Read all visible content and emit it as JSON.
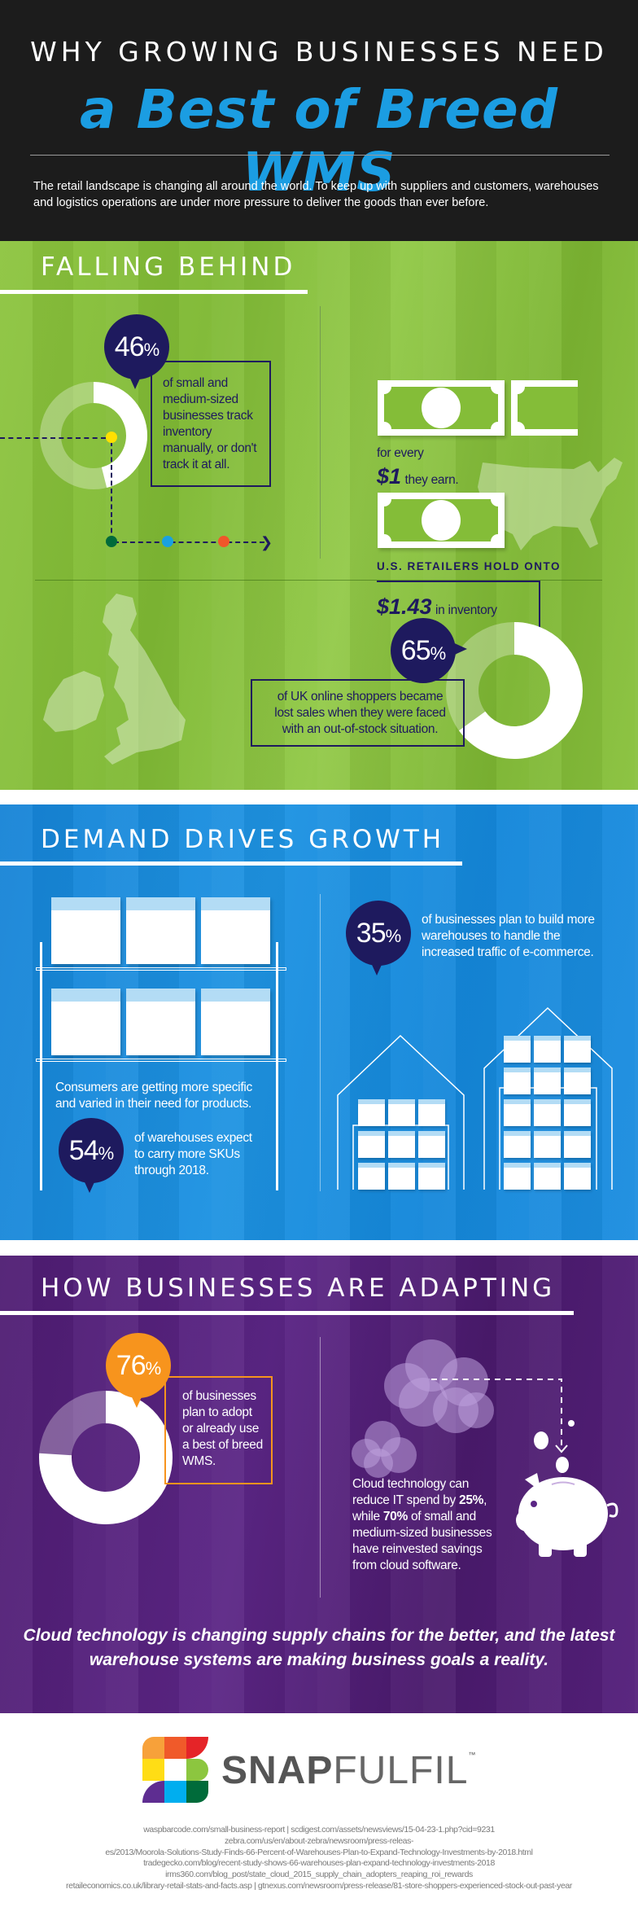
{
  "header": {
    "title_line1": "WHY GROWING BUSINESSES NEED",
    "title_line2": "a Best of Breed WMS",
    "intro": "The retail landscape is changing all around the world. To keep up with suppliers and customers, warehouses and logistics operations are under more pressure to deliver the goods than ever before."
  },
  "falling_behind": {
    "heading": "FALLING BEHIND",
    "stat": {
      "number": "46",
      "unit": "%",
      "percent": 46,
      "text": "of small and medium-sized businesses track inventory manually, or don't track it at all."
    },
    "us": {
      "heading": "U.S. RETAILERS HOLD ONTO",
      "amount": "$1.43",
      "amount_suffix": "in inventory",
      "for_every": "for every",
      "earn_amount": "$1",
      "earn_suffix": "they earn."
    },
    "uk": {
      "number": "65",
      "unit": "%",
      "percent": 65,
      "text": "of UK online shoppers became lost sales when they were faced with an out-of-stock situation."
    },
    "dot_colors": [
      "#ffe000",
      "#006b3a",
      "#1aa1e0",
      "#f0562a"
    ]
  },
  "demand": {
    "heading": "DEMAND DRIVES GROWTH",
    "consumers_text": "Consumers are getting more specific and varied in their need for products.",
    "skus": {
      "number": "54",
      "unit": "%",
      "text": "of warehouses expect to carry more SKUs through 2018."
    },
    "build": {
      "number": "35",
      "unit": "%",
      "text": "of businesses plan to build more warehouses to handle the increased traffic of e-commerce."
    }
  },
  "adapting": {
    "heading": "HOW BUSINESSES ARE ADAPTING",
    "wms": {
      "number": "76",
      "unit": "%",
      "percent": 76,
      "text": "of businesses plan to adopt or already use a best of breed WMS."
    },
    "cloud": {
      "text_a": "Cloud technology can reduce IT spend by ",
      "bold_1": "25%",
      "text_b": ", while ",
      "bold_2": "70%",
      "text_c": " of small and medium-sized businesses have reinvested savings from cloud software."
    },
    "closing": "Cloud technology is changing supply chains for the better, and the latest warehouse systems are making business goals a reality."
  },
  "footer": {
    "logo_bold": "SNAP",
    "logo_light": "FULFIL",
    "logo_tm": "™",
    "sources": [
      "waspbarcode.com/small-business-report  |  scdigest.com/assets/newsviews/15-04-23-1.php?cid=9231",
      "zebra.com/us/en/about-zebra/newsroom/press-releas-",
      "es/2013/Moorola-Solutions-Study-Finds-66-Percent-of-Warehouses-Plan-to-Expand-Technology-Investments-by-2018.html",
      "tradegecko.com/blog/recent-study-shows-66-warehouses-plan-expand-technology-investments-2018",
      "irms360.com/blog_post/state_cloud_2015_supply_chain_adopters_reaping_roi_rewards",
      "retaileconomics.co.uk/library-retail-stats-and-facts.asp  |  gtnexus.com/newsroom/press-release/81-store-shoppers-experienced-stock-out-past-year"
    ]
  },
  "colors": {
    "navy": "#1e1a5e",
    "title_blue": "#1b9de2",
    "green": "#8cc43e",
    "blue": "#1e93e2",
    "purple": "#5b2585",
    "orange": "#f7941d"
  }
}
